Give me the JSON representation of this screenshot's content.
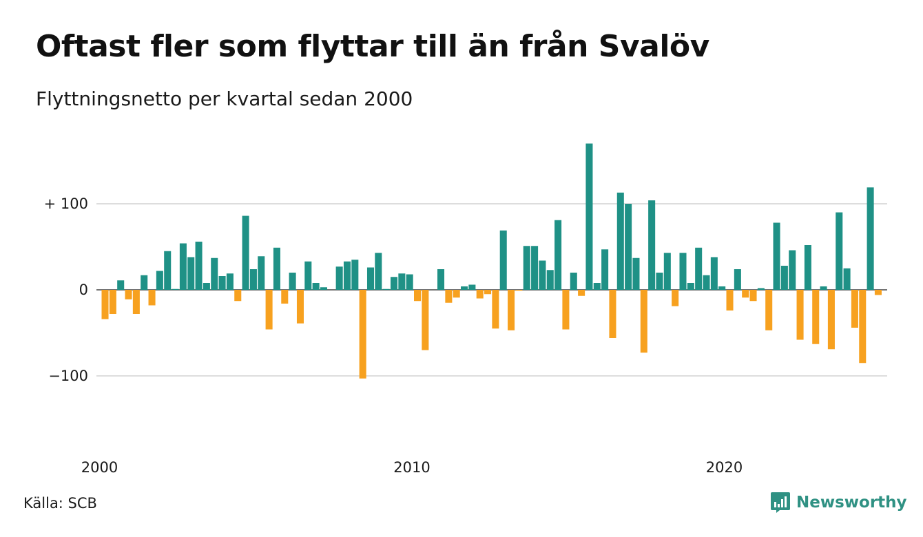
{
  "title": "Oftast fler som flyttar till än från Svalöv",
  "subtitle": "Flyttningsnetto per kvartal sedan 2000",
  "source": "Källa: SCB",
  "brand": {
    "name": "Newsworthy",
    "icon": "newsworthy-logo-icon"
  },
  "colors": {
    "positive": "#1f9186",
    "negative": "#f7a11f",
    "grid": "#dddddd",
    "brand": "#2f9183"
  },
  "chart_data": {
    "type": "bar",
    "x_start": 2000,
    "x_step": 0.25,
    "ylim": [
      -160,
      180
    ],
    "y_ticks": [
      {
        "value": 100,
        "label": "+ 100"
      },
      {
        "value": 0,
        "label": "0"
      },
      {
        "value": -100,
        "label": "−100"
      }
    ],
    "x_ticks": [
      {
        "value": 2000,
        "label": "2000"
      },
      {
        "value": 2010,
        "label": "2010"
      },
      {
        "value": 2020,
        "label": "2020"
      }
    ],
    "grid": "horizontal",
    "values": [
      -34,
      -28,
      11,
      -11,
      -28,
      17,
      -18,
      22,
      45,
      1,
      54,
      38,
      56,
      8,
      37,
      16,
      19,
      -13,
      86,
      24,
      39,
      -46,
      49,
      -16,
      20,
      -39,
      33,
      8,
      3,
      0,
      27,
      33,
      35,
      -103,
      26,
      43,
      1,
      15,
      19,
      18,
      -13,
      -70,
      0,
      24,
      -15,
      -9,
      4,
      6,
      -10,
      -5,
      -45,
      69,
      -47,
      -1,
      51,
      51,
      34,
      23,
      81,
      -46,
      20,
      -7,
      170,
      8,
      47,
      -56,
      113,
      100,
      37,
      -73,
      104,
      20,
      43,
      -19,
      43,
      8,
      49,
      17,
      38,
      4,
      -24,
      24,
      -9,
      -13,
      2,
      -47,
      78,
      28,
      46,
      -58,
      52,
      -63,
      4,
      -69,
      90,
      25,
      -44,
      -85,
      119,
      -6
    ]
  }
}
